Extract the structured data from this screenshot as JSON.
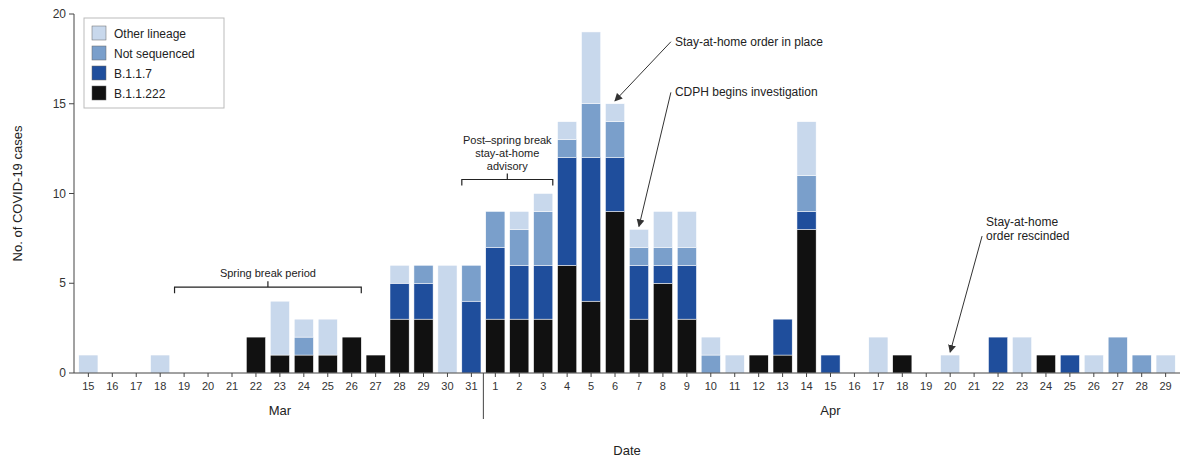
{
  "chart_data": {
    "type": "bar",
    "stacked": true,
    "categories": [
      "15",
      "16",
      "17",
      "18",
      "19",
      "20",
      "21",
      "22",
      "23",
      "24",
      "25",
      "26",
      "27",
      "28",
      "29",
      "30",
      "31",
      "1",
      "2",
      "3",
      "4",
      "5",
      "6",
      "7",
      "8",
      "9",
      "10",
      "11",
      "12",
      "13",
      "14",
      "15",
      "16",
      "17",
      "18",
      "19",
      "20",
      "21",
      "22",
      "23",
      "24",
      "25",
      "26",
      "27",
      "28",
      "29"
    ],
    "series": [
      {
        "name": "B.1.1.222",
        "color": "#111111",
        "values": [
          0,
          0,
          0,
          0,
          0,
          0,
          0,
          2,
          1,
          1,
          1,
          2,
          1,
          3,
          3,
          0,
          0,
          3,
          3,
          3,
          6,
          4,
          9,
          3,
          5,
          3,
          0,
          0,
          1,
          1,
          8,
          0,
          0,
          0,
          1,
          0,
          0,
          0,
          0,
          0,
          1,
          0,
          0,
          0,
          0,
          0
        ]
      },
      {
        "name": "B.1.1.7",
        "color": "#1f4e9c",
        "values": [
          0,
          0,
          0,
          0,
          0,
          0,
          0,
          0,
          0,
          0,
          0,
          0,
          0,
          2,
          2,
          0,
          4,
          4,
          3,
          3,
          6,
          8,
          3,
          3,
          1,
          3,
          0,
          0,
          0,
          2,
          1,
          1,
          0,
          0,
          0,
          0,
          0,
          0,
          2,
          0,
          0,
          1,
          0,
          0,
          0,
          0
        ]
      },
      {
        "name": "Not sequenced",
        "color": "#7a9fcb",
        "values": [
          0,
          0,
          0,
          0,
          0,
          0,
          0,
          0,
          0,
          1,
          0,
          0,
          0,
          0,
          1,
          0,
          2,
          2,
          2,
          3,
          1,
          3,
          2,
          1,
          1,
          1,
          1,
          0,
          0,
          0,
          2,
          0,
          0,
          0,
          0,
          0,
          0,
          0,
          0,
          0,
          0,
          0,
          0,
          2,
          1,
          0
        ]
      },
      {
        "name": "Other lineage",
        "color": "#c8d8ec",
        "values": [
          1,
          0,
          0,
          1,
          0,
          0,
          0,
          0,
          3,
          1,
          2,
          0,
          0,
          1,
          0,
          6,
          0,
          0,
          1,
          1,
          1,
          4,
          1,
          1,
          2,
          2,
          1,
          1,
          0,
          0,
          3,
          0,
          0,
          2,
          0,
          0,
          1,
          0,
          0,
          2,
          0,
          0,
          1,
          0,
          0,
          1
        ]
      }
    ],
    "ylim": [
      0,
      20
    ],
    "yticks": [
      0,
      5,
      10,
      15,
      20
    ],
    "ylabel": "No. of COVID-19 cases",
    "xlabel": "Date",
    "grid": false,
    "legend": "upper left",
    "x_groups": [
      {
        "label": "Mar",
        "start": 0,
        "end": 16
      },
      {
        "label": "Apr",
        "start": 17,
        "end": 45
      }
    ],
    "annotations": [
      {
        "text": "Stay-at-home order in place",
        "category": 22
      },
      {
        "text": "CDPH begins investigation",
        "category": 23
      },
      {
        "text": "Stay-at-home\norder rescinded",
        "category": 36
      }
    ],
    "spans": [
      {
        "text": "Spring break period",
        "from": 4,
        "to": 11
      },
      {
        "text": "Post–spring break\nstay-at-home\nadvisory",
        "from": 16,
        "to": 19
      }
    ]
  }
}
